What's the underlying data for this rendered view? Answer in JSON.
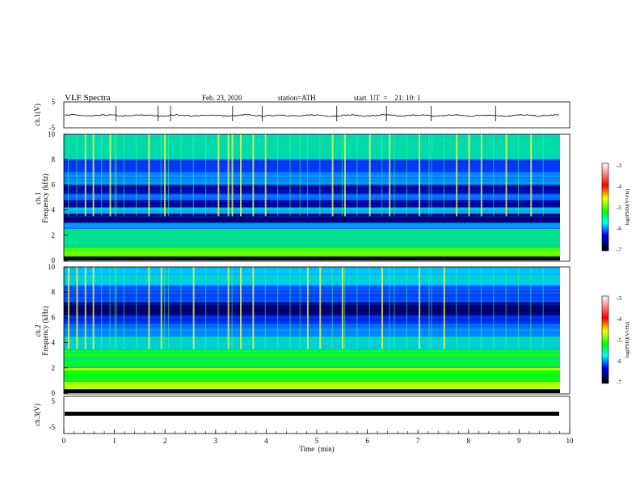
{
  "header": {
    "title": "VLF  Spectra",
    "date": "Feb. 23, 2020",
    "station": "station=ATH",
    "start": "start  UT  =    21: 10: 1"
  },
  "colorbar": {
    "label": "log(PSD)(V²/Hz)",
    "ticks": [
      "-3",
      "-4",
      "-5",
      "-6",
      "-7"
    ],
    "colors": [
      "#ffffff",
      "#ff0000",
      "#ffff00",
      "#00ff00",
      "#00ffff",
      "#0000ff",
      "#000000"
    ]
  },
  "chart_data": [
    {
      "type": "line",
      "name": "ch1-waveform",
      "ylabel": "ch.1(V)",
      "ylim": [
        -5,
        5
      ],
      "yticks": [
        "5",
        "-5"
      ],
      "xlim": [
        0,
        10
      ],
      "level_approx": -0.5,
      "spike_times_min": [
        1.05,
        1.9,
        2.15,
        3.4,
        4.0,
        5.5,
        6.5,
        7.4,
        8.7
      ]
    },
    {
      "type": "heatmap",
      "name": "ch1-spectrogram",
      "ylabel": "ch.1\nFrequency (kHz)",
      "ylim": [
        0,
        10
      ],
      "yticks": [
        "0",
        "2",
        "4",
        "6",
        "8",
        "10"
      ],
      "xlim": [
        0,
        10
      ],
      "bands_kHz": [
        {
          "from": 0.0,
          "to": 0.3,
          "level": -7
        },
        {
          "from": 0.3,
          "to": 1.0,
          "level": -4.5
        },
        {
          "from": 1.0,
          "to": 2.5,
          "level": -5.2
        },
        {
          "from": 2.5,
          "to": 3.0,
          "level": -5.8
        },
        {
          "from": 3.0,
          "to": 3.7,
          "level": -6.8
        },
        {
          "from": 3.7,
          "to": 4.2,
          "level": -5.6
        },
        {
          "from": 4.2,
          "to": 4.8,
          "level": -6.6
        },
        {
          "from": 4.8,
          "to": 5.3,
          "level": -6.0
        },
        {
          "from": 5.3,
          "to": 6.0,
          "level": -6.6
        },
        {
          "from": 6.0,
          "to": 7.0,
          "level": -5.8
        },
        {
          "from": 7.0,
          "to": 8.0,
          "level": -6.2
        },
        {
          "from": 8.0,
          "to": 10.0,
          "level": -5.3
        }
      ],
      "sferic_times_min": [
        0.08,
        0.25,
        0.42,
        0.58,
        0.75,
        0.92,
        1.02,
        1.05,
        1.2,
        1.45,
        1.7,
        1.95,
        2.02,
        2.1,
        2.35,
        2.6,
        2.85,
        3.1,
        3.3,
        3.38,
        3.55,
        3.8,
        4.05,
        4.3,
        4.55,
        4.75,
        4.9,
        5.15,
        5.4,
        5.6,
        5.65,
        5.9,
        6.15,
        6.4,
        6.55,
        6.65,
        6.9,
        7.15,
        7.35,
        7.4,
        7.65,
        7.9,
        8.15,
        8.4,
        8.65,
        8.9,
        9.15,
        9.4,
        9.65
      ]
    },
    {
      "type": "heatmap",
      "name": "ch2-spectrogram",
      "ylabel": "ch.2\nFrequency (kHz)",
      "ylim": [
        0,
        10
      ],
      "yticks": [
        "0",
        "2",
        "4",
        "6",
        "8",
        "10"
      ],
      "xlim": [
        0,
        10
      ],
      "bands_kHz": [
        {
          "from": 0.0,
          "to": 0.3,
          "level": -7
        },
        {
          "from": 0.3,
          "to": 0.9,
          "level": -4.2
        },
        {
          "from": 0.9,
          "to": 1.8,
          "level": -4.8
        },
        {
          "from": 1.8,
          "to": 2.0,
          "level": -4.3
        },
        {
          "from": 2.0,
          "to": 3.5,
          "level": -5.0
        },
        {
          "from": 3.5,
          "to": 4.5,
          "level": -5.4
        },
        {
          "from": 4.5,
          "to": 5.5,
          "level": -5.9
        },
        {
          "from": 5.5,
          "to": 6.2,
          "level": -6.3
        },
        {
          "from": 6.2,
          "to": 7.2,
          "level": -6.8
        },
        {
          "from": 7.2,
          "to": 8.5,
          "level": -6.1
        },
        {
          "from": 8.5,
          "to": 10.0,
          "level": -5.5
        }
      ],
      "sferic_times_min": [
        0.08,
        0.25,
        0.42,
        0.58,
        0.75,
        0.92,
        1.02,
        1.05,
        1.2,
        1.45,
        1.7,
        1.95,
        2.02,
        2.1,
        2.35,
        2.6,
        2.85,
        3.1,
        3.3,
        3.38,
        3.55,
        3.8,
        4.05,
        4.3,
        4.55,
        4.75,
        4.9,
        5.15,
        5.4,
        5.6,
        5.65,
        5.9,
        6.15,
        6.4,
        6.55,
        6.65,
        6.9,
        7.15,
        7.35,
        7.4,
        7.65,
        7.9,
        8.15,
        8.4,
        8.65,
        8.9,
        9.15,
        9.4,
        9.65
      ]
    },
    {
      "type": "line",
      "name": "ch3-waveform",
      "ylabel": "ch.3(V)",
      "ylim": [
        -5,
        5
      ],
      "yticks": [
        "5",
        "-5"
      ],
      "xlim": [
        0,
        10
      ],
      "level_approx": -1.0
    }
  ],
  "xaxis": {
    "label": "Time  (min)",
    "ticks": [
      "0",
      "1",
      "2",
      "3",
      "4",
      "5",
      "6",
      "7",
      "8",
      "9",
      "10"
    ]
  }
}
